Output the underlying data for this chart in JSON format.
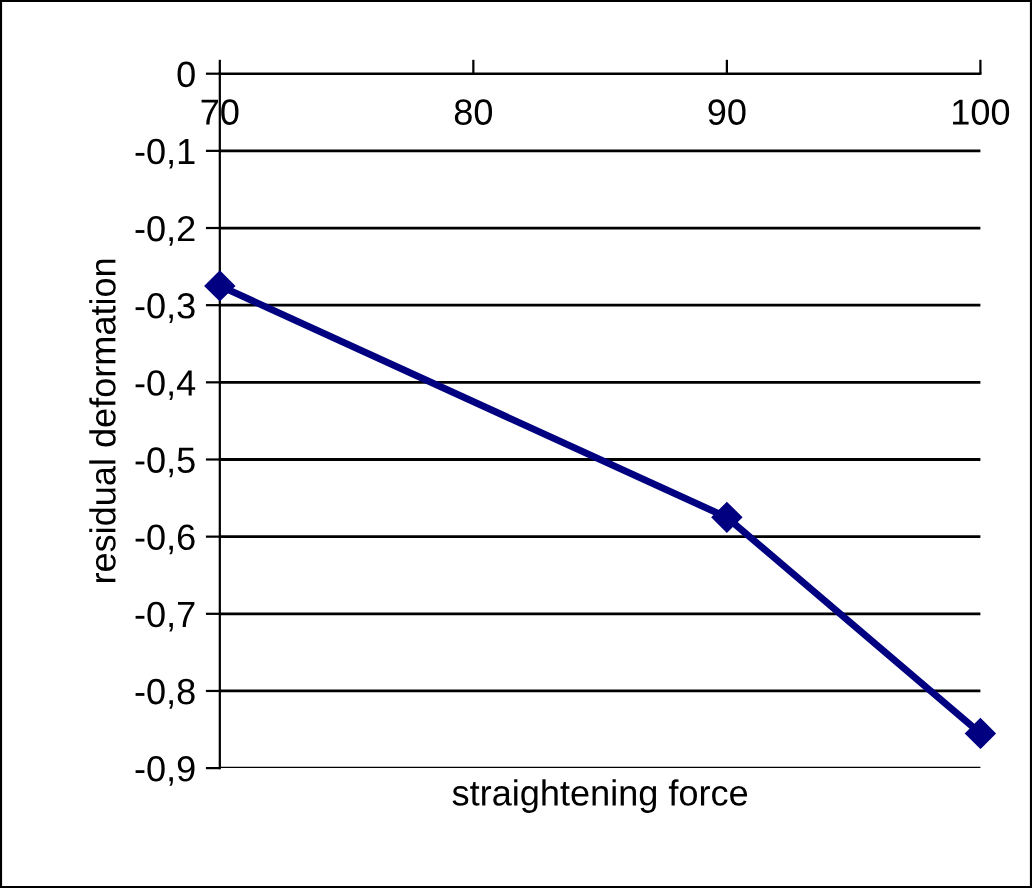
{
  "chart_data": {
    "type": "line",
    "xlabel": "straightening force",
    "ylabel": "residual deformation",
    "x": [
      70,
      90,
      100
    ],
    "series": [
      {
        "color": "#000080",
        "values": [
          -0.275,
          -0.575,
          -0.855
        ]
      }
    ],
    "xlim": [
      70,
      100
    ],
    "xticks": [
      70,
      80,
      90,
      100
    ],
    "ylim": [
      -0.9,
      0
    ],
    "yticks": [
      0,
      {
        "value": -0.1,
        "label": "-0,1"
      },
      {
        "value": -0.2,
        "label": "-0,2"
      },
      {
        "value": -0.3,
        "label": "-0,3"
      },
      {
        "value": -0.4,
        "label": "-0,4"
      },
      {
        "value": -0.5,
        "label": "-0,5"
      },
      {
        "value": -0.6,
        "label": "-0,6"
      },
      {
        "value": -0.7,
        "label": "-0,7"
      },
      {
        "value": -0.8,
        "label": "-0,8"
      },
      {
        "value": -0.9,
        "label": "-0,9"
      }
    ],
    "grid": "y",
    "marker": "diamond",
    "line_style": "solid",
    "legend": false
  }
}
